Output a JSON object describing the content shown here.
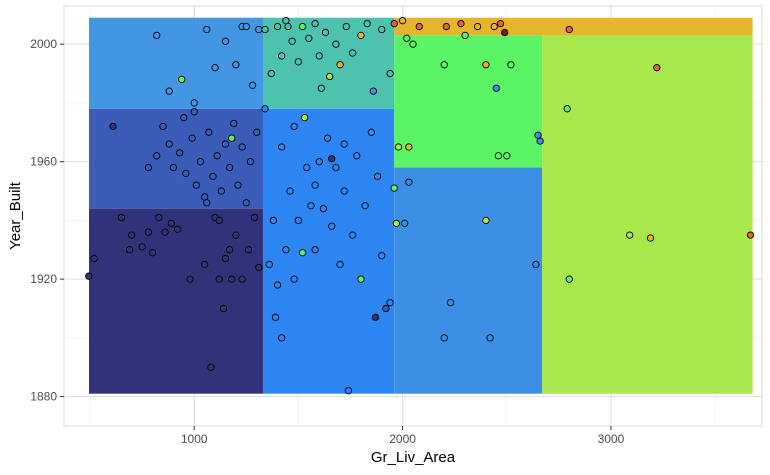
{
  "chart_data": {
    "type": "scatter",
    "subtype": "decision-tree-partition-with-points",
    "title": "",
    "xlabel": "Gr_Liv_Area",
    "ylabel": "Year_Built",
    "xlim": [
      375,
      3725
    ],
    "ylim": [
      1870,
      2013
    ],
    "x_ticks": [
      1000,
      2000,
      3000
    ],
    "y_ticks": [
      1880,
      1920,
      1960,
      2000
    ],
    "grid": true,
    "legend": "none",
    "regions": [
      {
        "x": [
          495,
          1330
        ],
        "y": [
          1881,
          1944
        ],
        "color": "#32327a"
      },
      {
        "x": [
          495,
          1330
        ],
        "y": [
          1944,
          1978
        ],
        "color": "#3a5dba"
      },
      {
        "x": [
          495,
          1330
        ],
        "y": [
          1978,
          2009
        ],
        "color": "#4296e4"
      },
      {
        "x": [
          1330,
          1960
        ],
        "y": [
          1881,
          1978
        ],
        "color": "#2e86f5"
      },
      {
        "x": [
          1330,
          1960
        ],
        "y": [
          1978,
          2009
        ],
        "color": "#4dc2ae"
      },
      {
        "x": [
          1960,
          2670
        ],
        "y": [
          1881,
          1958
        ],
        "color": "#3d8fe6"
      },
      {
        "x": [
          1960,
          2670
        ],
        "y": [
          1958,
          2003
        ],
        "color": "#5cf467"
      },
      {
        "x": [
          1960,
          3680
        ],
        "y": [
          2003,
          2009
        ],
        "color": "#e4b52d"
      },
      {
        "x": [
          2670,
          3680
        ],
        "y": [
          1881,
          2003
        ],
        "color": "#a8e84a"
      }
    ],
    "points": [
      {
        "x": 494,
        "y": 1921,
        "color": "#32327a"
      },
      {
        "x": 520,
        "y": 1927,
        "color": "#32327a"
      },
      {
        "x": 610,
        "y": 1972,
        "color": "#32327a"
      },
      {
        "x": 650,
        "y": 1941,
        "color": "#32327a"
      },
      {
        "x": 690,
        "y": 1930,
        "color": "#32327a"
      },
      {
        "x": 700,
        "y": 1935,
        "color": "#32327a"
      },
      {
        "x": 750,
        "y": 1931,
        "color": "#32327a"
      },
      {
        "x": 780,
        "y": 1936,
        "color": "#32327a"
      },
      {
        "x": 800,
        "y": 1929,
        "color": "#32327a"
      },
      {
        "x": 830,
        "y": 1941,
        "color": "#32327a"
      },
      {
        "x": 860,
        "y": 1936,
        "color": "#32327a"
      },
      {
        "x": 890,
        "y": 1939,
        "color": "#32327a"
      },
      {
        "x": 920,
        "y": 1937,
        "color": "#32327a"
      },
      {
        "x": 980,
        "y": 1920,
        "color": "#32327a"
      },
      {
        "x": 1050,
        "y": 1925,
        "color": "#32327a"
      },
      {
        "x": 1080,
        "y": 1890,
        "color": "#32327a"
      },
      {
        "x": 1100,
        "y": 1941,
        "color": "#32327a"
      },
      {
        "x": 1120,
        "y": 1920,
        "color": "#32327a"
      },
      {
        "x": 1140,
        "y": 1910,
        "color": "#32327a"
      },
      {
        "x": 1150,
        "y": 1927,
        "color": "#32327a"
      },
      {
        "x": 1180,
        "y": 1920,
        "color": "#32327a"
      },
      {
        "x": 1200,
        "y": 1935,
        "color": "#32327a"
      },
      {
        "x": 1230,
        "y": 1920,
        "color": "#32327a"
      },
      {
        "x": 1260,
        "y": 1930,
        "color": "#32327a"
      },
      {
        "x": 1290,
        "y": 1941,
        "color": "#32327a"
      },
      {
        "x": 1310,
        "y": 1924,
        "color": "#32327a"
      },
      {
        "x": 1120,
        "y": 1940,
        "color": "#32327a"
      },
      {
        "x": 1170,
        "y": 1930,
        "color": "#32327a"
      },
      {
        "x": 780,
        "y": 1958,
        "color": "#3a5dba"
      },
      {
        "x": 820,
        "y": 1962,
        "color": "#3a5dba"
      },
      {
        "x": 850,
        "y": 1972,
        "color": "#3a5dba"
      },
      {
        "x": 880,
        "y": 1966,
        "color": "#3a5dba"
      },
      {
        "x": 900,
        "y": 1958,
        "color": "#3a5dba"
      },
      {
        "x": 930,
        "y": 1963,
        "color": "#3a5dba"
      },
      {
        "x": 960,
        "y": 1956,
        "color": "#3a5dba"
      },
      {
        "x": 990,
        "y": 1968,
        "color": "#3a5dba"
      },
      {
        "x": 1010,
        "y": 1952,
        "color": "#3a5dba"
      },
      {
        "x": 1030,
        "y": 1960,
        "color": "#3a5dba"
      },
      {
        "x": 1050,
        "y": 1948,
        "color": "#3a5dba"
      },
      {
        "x": 1070,
        "y": 1970,
        "color": "#3a5dba"
      },
      {
        "x": 1090,
        "y": 1955,
        "color": "#3a5dba"
      },
      {
        "x": 1110,
        "y": 1962,
        "color": "#3a5dba"
      },
      {
        "x": 1130,
        "y": 1950,
        "color": "#3a5dba"
      },
      {
        "x": 1150,
        "y": 1966,
        "color": "#3a5dba"
      },
      {
        "x": 1170,
        "y": 1958,
        "color": "#3a5dba"
      },
      {
        "x": 1190,
        "y": 1973,
        "color": "#3a5dba"
      },
      {
        "x": 1210,
        "y": 1952,
        "color": "#3a5dba"
      },
      {
        "x": 1230,
        "y": 1965,
        "color": "#3a5dba"
      },
      {
        "x": 1250,
        "y": 1946,
        "color": "#3a5dba"
      },
      {
        "x": 1270,
        "y": 1960,
        "color": "#3a5dba"
      },
      {
        "x": 1300,
        "y": 1970,
        "color": "#3a5dba"
      },
      {
        "x": 950,
        "y": 1975,
        "color": "#3a5dba"
      },
      {
        "x": 1000,
        "y": 1977,
        "color": "#3a5dba"
      },
      {
        "x": 1060,
        "y": 1946,
        "color": "#3a5dba"
      },
      {
        "x": 1180,
        "y": 1968,
        "color": "#5cf467"
      },
      {
        "x": 820,
        "y": 2003,
        "color": "#4296e4"
      },
      {
        "x": 880,
        "y": 1984,
        "color": "#4296e4"
      },
      {
        "x": 940,
        "y": 1988,
        "color": "#5cf467"
      },
      {
        "x": 1000,
        "y": 1980,
        "color": "#4296e4"
      },
      {
        "x": 1060,
        "y": 2005,
        "color": "#4296e4"
      },
      {
        "x": 1100,
        "y": 1992,
        "color": "#4296e4"
      },
      {
        "x": 1150,
        "y": 2001,
        "color": "#4296e4"
      },
      {
        "x": 1200,
        "y": 1993,
        "color": "#4296e4"
      },
      {
        "x": 1230,
        "y": 2006,
        "color": "#4296e4"
      },
      {
        "x": 1280,
        "y": 1986,
        "color": "#4296e4"
      },
      {
        "x": 1310,
        "y": 2005,
        "color": "#4296e4"
      },
      {
        "x": 1250,
        "y": 2006,
        "color": "#4296e4"
      },
      {
        "x": 1340,
        "y": 1978,
        "color": "#2e86f5"
      },
      {
        "x": 1360,
        "y": 1925,
        "color": "#2e86f5"
      },
      {
        "x": 1380,
        "y": 1940,
        "color": "#2e86f5"
      },
      {
        "x": 1400,
        "y": 1918,
        "color": "#2e86f5"
      },
      {
        "x": 1420,
        "y": 1900,
        "color": "#2e86f5"
      },
      {
        "x": 1440,
        "y": 1930,
        "color": "#2e86f5"
      },
      {
        "x": 1460,
        "y": 1950,
        "color": "#2e86f5"
      },
      {
        "x": 1480,
        "y": 1920,
        "color": "#2e86f5"
      },
      {
        "x": 1500,
        "y": 1940,
        "color": "#2e86f5"
      },
      {
        "x": 1520,
        "y": 1929,
        "color": "#5cf467"
      },
      {
        "x": 1540,
        "y": 1958,
        "color": "#2e86f5"
      },
      {
        "x": 1560,
        "y": 1945,
        "color": "#2e86f5"
      },
      {
        "x": 1580,
        "y": 1930,
        "color": "#2e86f5"
      },
      {
        "x": 1600,
        "y": 1960,
        "color": "#2e86f5"
      },
      {
        "x": 1620,
        "y": 1944,
        "color": "#2e86f5"
      },
      {
        "x": 1640,
        "y": 1968,
        "color": "#2e86f5"
      },
      {
        "x": 1660,
        "y": 1938,
        "color": "#2e86f5"
      },
      {
        "x": 1680,
        "y": 1958,
        "color": "#2e86f5"
      },
      {
        "x": 1700,
        "y": 1925,
        "color": "#2e86f5"
      },
      {
        "x": 1720,
        "y": 1950,
        "color": "#2e86f5"
      },
      {
        "x": 1740,
        "y": 1882,
        "color": "#2e86f5"
      },
      {
        "x": 1760,
        "y": 1935,
        "color": "#2e86f5"
      },
      {
        "x": 1780,
        "y": 1962,
        "color": "#2e86f5"
      },
      {
        "x": 1800,
        "y": 1920,
        "color": "#5cf467"
      },
      {
        "x": 1820,
        "y": 1945,
        "color": "#2e86f5"
      },
      {
        "x": 1850,
        "y": 1970,
        "color": "#2e86f5"
      },
      {
        "x": 1870,
        "y": 1907,
        "color": "#32327a"
      },
      {
        "x": 1900,
        "y": 1928,
        "color": "#2e86f5"
      },
      {
        "x": 1920,
        "y": 1910,
        "color": "#3a5dba"
      },
      {
        "x": 1940,
        "y": 1912,
        "color": "#2e86f5"
      },
      {
        "x": 1420,
        "y": 1965,
        "color": "#2e86f5"
      },
      {
        "x": 1480,
        "y": 1972,
        "color": "#2e86f5"
      },
      {
        "x": 1530,
        "y": 1975,
        "color": "#a8e84a"
      },
      {
        "x": 1580,
        "y": 1952,
        "color": "#2e86f5"
      },
      {
        "x": 1660,
        "y": 1961,
        "color": "#32327a"
      },
      {
        "x": 1720,
        "y": 1966,
        "color": "#2e86f5"
      },
      {
        "x": 1880,
        "y": 1955,
        "color": "#2e86f5"
      },
      {
        "x": 1390,
        "y": 1907,
        "color": "#2e86f5"
      },
      {
        "x": 1340,
        "y": 2005,
        "color": "#4dc2ae"
      },
      {
        "x": 1370,
        "y": 1990,
        "color": "#4dc2ae"
      },
      {
        "x": 1400,
        "y": 2006,
        "color": "#4dc2ae"
      },
      {
        "x": 1420,
        "y": 1996,
        "color": "#4dc2ae"
      },
      {
        "x": 1450,
        "y": 2006,
        "color": "#4dc2ae"
      },
      {
        "x": 1470,
        "y": 2001,
        "color": "#4dc2ae"
      },
      {
        "x": 1500,
        "y": 1994,
        "color": "#4dc2ae"
      },
      {
        "x": 1520,
        "y": 2006,
        "color": "#5cf467"
      },
      {
        "x": 1550,
        "y": 2002,
        "color": "#4dc2ae"
      },
      {
        "x": 1580,
        "y": 2007,
        "color": "#4dc2ae"
      },
      {
        "x": 1600,
        "y": 1996,
        "color": "#4dc2ae"
      },
      {
        "x": 1630,
        "y": 2004,
        "color": "#4dc2ae"
      },
      {
        "x": 1650,
        "y": 1989,
        "color": "#a8e84a"
      },
      {
        "x": 1680,
        "y": 2000,
        "color": "#4dc2ae"
      },
      {
        "x": 1700,
        "y": 1993,
        "color": "#e4b52d"
      },
      {
        "x": 1730,
        "y": 2006,
        "color": "#4dc2ae"
      },
      {
        "x": 1760,
        "y": 1997,
        "color": "#4dc2ae"
      },
      {
        "x": 1800,
        "y": 2003,
        "color": "#e4b52d"
      },
      {
        "x": 1830,
        "y": 2007,
        "color": "#4dc2ae"
      },
      {
        "x": 1860,
        "y": 1984,
        "color": "#4296e4"
      },
      {
        "x": 1900,
        "y": 2005,
        "color": "#4dc2ae"
      },
      {
        "x": 1940,
        "y": 1990,
        "color": "#4dc2ae"
      },
      {
        "x": 1440,
        "y": 2008,
        "color": "#4dc2ae"
      },
      {
        "x": 1610,
        "y": 1985,
        "color": "#4dc2ae"
      },
      {
        "x": 1960,
        "y": 1951,
        "color": "#5cf467"
      },
      {
        "x": 1970,
        "y": 1939,
        "color": "#a8e84a"
      },
      {
        "x": 2010,
        "y": 1939,
        "color": "#3d8fe6"
      },
      {
        "x": 2030,
        "y": 1953,
        "color": "#3d8fe6"
      },
      {
        "x": 2200,
        "y": 1900,
        "color": "#3d8fe6"
      },
      {
        "x": 2230,
        "y": 1912,
        "color": "#3d8fe6"
      },
      {
        "x": 2400,
        "y": 1940,
        "color": "#a8e84a"
      },
      {
        "x": 2420,
        "y": 1900,
        "color": "#3d8fe6"
      },
      {
        "x": 2640,
        "y": 1925,
        "color": "#3d8fe6"
      },
      {
        "x": 2650,
        "y": 1969,
        "color": "#3d8fe6"
      },
      {
        "x": 1980,
        "y": 1965,
        "color": "#a8e84a"
      },
      {
        "x": 2030,
        "y": 1965,
        "color": "#e4b52d"
      },
      {
        "x": 2020,
        "y": 2002,
        "color": "#5cf467"
      },
      {
        "x": 2050,
        "y": 2000,
        "color": "#5cf467"
      },
      {
        "x": 2200,
        "y": 1993,
        "color": "#5cf467"
      },
      {
        "x": 2300,
        "y": 2003,
        "color": "#5cf467"
      },
      {
        "x": 2400,
        "y": 1993,
        "color": "#e4b52d"
      },
      {
        "x": 2450,
        "y": 1985,
        "color": "#3d8fe6"
      },
      {
        "x": 2460,
        "y": 1962,
        "color": "#5cf467"
      },
      {
        "x": 2500,
        "y": 1962,
        "color": "#5cf467"
      },
      {
        "x": 2520,
        "y": 1993,
        "color": "#5cf467"
      },
      {
        "x": 2660,
        "y": 1967,
        "color": "#3d8fe6"
      },
      {
        "x": 1960,
        "y": 2007,
        "color": "#e4643a"
      },
      {
        "x": 2000,
        "y": 2008,
        "color": "#e4b52d"
      },
      {
        "x": 2080,
        "y": 2006,
        "color": "#e4643a"
      },
      {
        "x": 2210,
        "y": 2006,
        "color": "#e4643a"
      },
      {
        "x": 2280,
        "y": 2007,
        "color": "#e4643a"
      },
      {
        "x": 2360,
        "y": 2006,
        "color": "#e4b52d"
      },
      {
        "x": 2440,
        "y": 2006,
        "color": "#e4b52d"
      },
      {
        "x": 2470,
        "y": 2007,
        "color": "#e4643a"
      },
      {
        "x": 2490,
        "y": 2004,
        "color": "#7a1a1a"
      },
      {
        "x": 2800,
        "y": 2005,
        "color": "#e4643a"
      },
      {
        "x": 2790,
        "y": 1978,
        "color": "#5cf467"
      },
      {
        "x": 2800,
        "y": 1920,
        "color": "#5cf467"
      },
      {
        "x": 3090,
        "y": 1935,
        "color": "#a8e84a"
      },
      {
        "x": 3190,
        "y": 1934,
        "color": "#e4b52d"
      },
      {
        "x": 3220,
        "y": 1992,
        "color": "#e4643a"
      },
      {
        "x": 3670,
        "y": 1935,
        "color": "#e4643a"
      }
    ]
  }
}
